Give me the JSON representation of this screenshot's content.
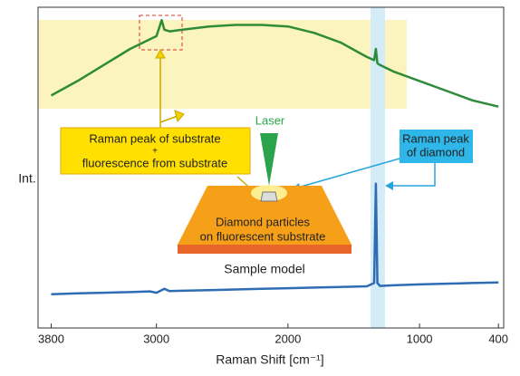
{
  "chart_data": {
    "type": "line",
    "x": [
      3800,
      3600,
      3400,
      3200,
      3050,
      3000,
      2960,
      2940,
      2900,
      2800,
      2600,
      2400,
      2200,
      2000,
      1800,
      1600,
      1400,
      1345,
      1332,
      1320,
      1300,
      1200,
      1000,
      800,
      600,
      400
    ],
    "series": [
      {
        "color": "#2e8b3a",
        "values": [
          72.5,
          77,
          82,
          87,
          90,
          91,
          96,
          93,
          92.5,
          93,
          94,
          94.5,
          94.5,
          94,
          92,
          89,
          84.5,
          83.5,
          87,
          82.5,
          82,
          80,
          77,
          74,
          71,
          69
        ]
      },
      {
        "color": "#2e6db4",
        "values": [
          10.5,
          10.8,
          11.0,
          11.2,
          11.4,
          11.0,
          11.8,
          12.2,
          11.5,
          11.6,
          11.8,
          12.0,
          12.2,
          12.4,
          12.6,
          12.8,
          13.0,
          14,
          45,
          14,
          13.1,
          13.3,
          13.6,
          13.8,
          14.0,
          14.2
        ]
      }
    ],
    "xlim": [
      3900,
      360
    ],
    "ylim": [
      0,
      100
    ],
    "xticks": [
      3800,
      3000,
      2000,
      1000,
      400
    ],
    "x_label": "Raman Shift [cm⁻¹]",
    "y_label": "Int.",
    "annotations": {
      "substrate": [
        "Raman peak of substrate",
        "+",
        "fluorescence from substrate"
      ],
      "diamond": [
        "Raman peak",
        "of diamond"
      ],
      "laser": "Laser",
      "sample": [
        "Diamond particles",
        "on fluorescent substrate"
      ],
      "sample_caption": "Sample model"
    }
  }
}
